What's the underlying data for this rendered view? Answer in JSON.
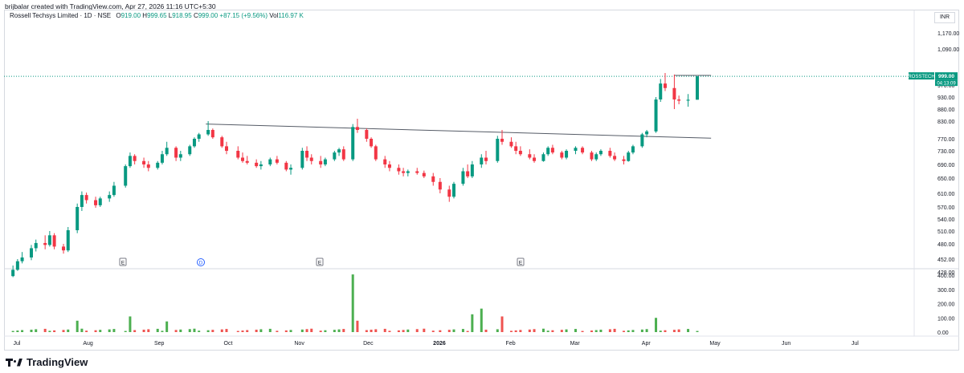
{
  "header": {
    "caption": "brijbalar created with TradingView.com, Apr 27, 2026 11:16 UTC+5:30"
  },
  "legend": {
    "symbol": "Rossell Techsys Limited · 1D · NSE",
    "o_label": "O",
    "o_value": "919.00",
    "h_label": "H",
    "h_value": "999.65",
    "l_label": "L",
    "l_value": "918.95",
    "c_label": "C",
    "c_value": "999.00",
    "change": "+87.15 (+9.56%)",
    "vol_label": "Vol",
    "vol_value": "116.97 K"
  },
  "currency_button": "INR",
  "price_tag": {
    "ticker": "ROSSTECH",
    "price": "999.00",
    "countdown": "04:13:09"
  },
  "brand": "TradingView",
  "colors": {
    "up": "#089981",
    "down": "#f23645",
    "vol_up": "#4caf50",
    "vol_down": "#ef5350",
    "accent": "#2962ff"
  },
  "chart_data": [
    {
      "type": "candlestick",
      "title": "Rossell Techsys Limited · 1D · NSE",
      "price_axis_ticks": [
        1170,
        1090,
        970,
        930,
        880,
        830,
        770,
        730,
        690,
        650,
        610,
        570,
        540,
        510,
        480,
        452,
        428
      ],
      "time_axis_labels": [
        "Jul",
        "Aug",
        "Sep",
        "Oct",
        "Nov",
        "Dec",
        "2026",
        "Feb",
        "Mar",
        "Apr",
        "May",
        "Jun",
        "Jul",
        "Aug"
      ],
      "earnings_markers": [
        "E",
        "D",
        "E",
        "E"
      ],
      "last_price": 999.0,
      "trendlines": [
        {
          "from": {
            "date": "2025-09-22",
            "price": 820
          },
          "to": {
            "date": "2026-04-30",
            "price": 772
          }
        },
        {
          "from": {
            "date": "2026-04-14",
            "price": 1002
          },
          "to": {
            "date": "2026-04-30",
            "price": 1002
          }
        }
      ],
      "candles_approx": [
        [
          "2025-06-30",
          420,
          440,
          418,
          432
        ],
        [
          "2025-07-02",
          432,
          452,
          430,
          448
        ],
        [
          "2025-07-04",
          448,
          465,
          444,
          455
        ],
        [
          "2025-07-08",
          455,
          478,
          450,
          472
        ],
        [
          "2025-07-10",
          472,
          490,
          466,
          482
        ],
        [
          "2025-07-14",
          482,
          500,
          470,
          478
        ],
        [
          "2025-07-16",
          478,
          510,
          475,
          500
        ],
        [
          "2025-07-18",
          500,
          505,
          470,
          475
        ],
        [
          "2025-07-22",
          475,
          480,
          462,
          468
        ],
        [
          "2025-07-24",
          468,
          520,
          465,
          512
        ],
        [
          "2025-07-28",
          512,
          580,
          505,
          570
        ],
        [
          "2025-07-30",
          570,
          615,
          560,
          605
        ],
        [
          "2025-08-01",
          605,
          612,
          580,
          590
        ],
        [
          "2025-08-05",
          590,
          600,
          568,
          575
        ],
        [
          "2025-08-07",
          575,
          600,
          570,
          595
        ],
        [
          "2025-08-11",
          595,
          615,
          585,
          605
        ],
        [
          "2025-08-13",
          605,
          640,
          600,
          630
        ],
        [
          "2025-08-18",
          630,
          690,
          625,
          685
        ],
        [
          "2025-08-20",
          685,
          725,
          680,
          715
        ],
        [
          "2025-08-22",
          715,
          720,
          690,
          700
        ],
        [
          "2025-08-26",
          700,
          710,
          680,
          690
        ],
        [
          "2025-08-28",
          690,
          700,
          670,
          680
        ],
        [
          "2025-09-01",
          680,
          700,
          675,
          695
        ],
        [
          "2025-09-03",
          695,
          730,
          690,
          720
        ],
        [
          "2025-09-05",
          720,
          760,
          715,
          740
        ],
        [
          "2025-09-09",
          740,
          745,
          700,
          710
        ],
        [
          "2025-09-11",
          710,
          730,
          700,
          720
        ],
        [
          "2025-09-15",
          720,
          750,
          715,
          745
        ],
        [
          "2025-09-17",
          745,
          775,
          740,
          770
        ],
        [
          "2025-09-19",
          770,
          790,
          760,
          785
        ],
        [
          "2025-09-23",
          785,
          830,
          780,
          800
        ],
        [
          "2025-09-25",
          800,
          805,
          770,
          775
        ],
        [
          "2025-09-29",
          775,
          780,
          740,
          745
        ],
        [
          "2025-10-01",
          745,
          760,
          720,
          730
        ],
        [
          "2025-10-06",
          730,
          745,
          705,
          710
        ],
        [
          "2025-10-08",
          710,
          725,
          695,
          700
        ],
        [
          "2025-10-10",
          700,
          715,
          690,
          695
        ],
        [
          "2025-10-14",
          695,
          705,
          680,
          685
        ],
        [
          "2025-10-16",
          685,
          700,
          675,
          690
        ],
        [
          "2025-10-20",
          690,
          710,
          685,
          705
        ],
        [
          "2025-10-23",
          705,
          715,
          690,
          695
        ],
        [
          "2025-10-27",
          695,
          700,
          670,
          675
        ],
        [
          "2025-10-29",
          675,
          690,
          660,
          680
        ],
        [
          "2025-11-03",
          680,
          740,
          675,
          730
        ],
        [
          "2025-11-05",
          730,
          745,
          700,
          710
        ],
        [
          "2025-11-07",
          710,
          720,
          690,
          700
        ],
        [
          "2025-11-11",
          700,
          715,
          680,
          690
        ],
        [
          "2025-11-13",
          690,
          710,
          685,
          705
        ],
        [
          "2025-11-17",
          705,
          730,
          700,
          725
        ],
        [
          "2025-11-19",
          725,
          740,
          715,
          735
        ],
        [
          "2025-11-21",
          735,
          745,
          700,
          705
        ],
        [
          "2025-11-25",
          705,
          820,
          700,
          810
        ],
        [
          "2025-11-27",
          810,
          840,
          790,
          800
        ],
        [
          "2025-12-01",
          800,
          805,
          760,
          770
        ],
        [
          "2025-12-03",
          770,
          775,
          740,
          745
        ],
        [
          "2025-12-05",
          745,
          750,
          700,
          705
        ],
        [
          "2025-12-09",
          705,
          715,
          680,
          690
        ],
        [
          "2025-12-11",
          690,
          700,
          670,
          680
        ],
        [
          "2025-12-15",
          680,
          690,
          660,
          670
        ],
        [
          "2025-12-17",
          670,
          680,
          655,
          665
        ],
        [
          "2025-12-19",
          665,
          675,
          655,
          670
        ],
        [
          "2025-12-23",
          670,
          680,
          660,
          665
        ],
        [
          "2025-12-26",
          665,
          672,
          650,
          655
        ],
        [
          "2025-12-30",
          655,
          665,
          630,
          640
        ],
        [
          "2026-01-02",
          640,
          650,
          610,
          620
        ],
        [
          "2026-01-06",
          620,
          630,
          585,
          600
        ],
        [
          "2026-01-08",
          600,
          640,
          595,
          635
        ],
        [
          "2026-01-12",
          635,
          680,
          630,
          670
        ],
        [
          "2026-01-14",
          670,
          690,
          650,
          655
        ],
        [
          "2026-01-16",
          655,
          700,
          650,
          690
        ],
        [
          "2026-01-20",
          690,
          720,
          680,
          710
        ],
        [
          "2026-01-22",
          710,
          730,
          690,
          700
        ],
        [
          "2026-01-27",
          700,
          780,
          695,
          770
        ],
        [
          "2026-01-29",
          770,
          800,
          750,
          760
        ],
        [
          "2026-02-02",
          760,
          775,
          740,
          745
        ],
        [
          "2026-02-04",
          745,
          760,
          720,
          730
        ],
        [
          "2026-02-06",
          730,
          745,
          715,
          720
        ],
        [
          "2026-02-10",
          720,
          735,
          705,
          710
        ],
        [
          "2026-02-12",
          710,
          720,
          695,
          700
        ],
        [
          "2026-02-16",
          700,
          725,
          698,
          720
        ],
        [
          "2026-02-18",
          720,
          745,
          715,
          740
        ],
        [
          "2026-02-20",
          740,
          750,
          720,
          725
        ],
        [
          "2026-02-24",
          725,
          730,
          705,
          710
        ],
        [
          "2026-02-26",
          710,
          735,
          705,
          730
        ],
        [
          "2026-03-02",
          730,
          745,
          720,
          740
        ],
        [
          "2026-03-05",
          740,
          745,
          720,
          725
        ],
        [
          "2026-03-09",
          725,
          730,
          700,
          705
        ],
        [
          "2026-03-11",
          705,
          725,
          700,
          720
        ],
        [
          "2026-03-13",
          720,
          735,
          715,
          730
        ],
        [
          "2026-03-17",
          730,
          740,
          710,
          715
        ],
        [
          "2026-03-19",
          715,
          725,
          700,
          705
        ],
        [
          "2026-03-23",
          705,
          715,
          690,
          700
        ],
        [
          "2026-03-25",
          700,
          730,
          698,
          725
        ],
        [
          "2026-03-27",
          725,
          750,
          720,
          745
        ],
        [
          "2026-03-31",
          745,
          790,
          740,
          785
        ],
        [
          "2026-04-02",
          785,
          800,
          775,
          795
        ],
        [
          "2026-04-06",
          795,
          930,
          790,
          920
        ],
        [
          "2026-04-08",
          920,
          990,
          910,
          975
        ],
        [
          "2026-04-10",
          975,
          1010,
          950,
          960
        ],
        [
          "2026-04-14",
          960,
          1005,
          880,
          920
        ],
        [
          "2026-04-16",
          920,
          935,
          900,
          915
        ],
        [
          "2026-04-20",
          915,
          940,
          890,
          919
        ],
        [
          "2026-04-24",
          919,
          999.65,
          918.95,
          999
        ]
      ]
    },
    {
      "type": "bar",
      "title": "Volume",
      "value_axis_ticks": [
        "400.00",
        "300.00",
        "200.00",
        "100.00",
        "0.00"
      ],
      "volume_spikes_thousands": [
        {
          "date": "2025-07-28",
          "value": 80
        },
        {
          "date": "2025-08-20",
          "value": 110
        },
        {
          "date": "2025-09-05",
          "value": 75
        },
        {
          "date": "2025-11-25",
          "value": 405
        },
        {
          "date": "2025-11-27",
          "value": 80
        },
        {
          "date": "2026-01-16",
          "value": 125
        },
        {
          "date": "2026-01-20",
          "value": 165
        },
        {
          "date": "2026-01-29",
          "value": 110
        },
        {
          "date": "2026-04-06",
          "value": 100
        }
      ]
    }
  ]
}
